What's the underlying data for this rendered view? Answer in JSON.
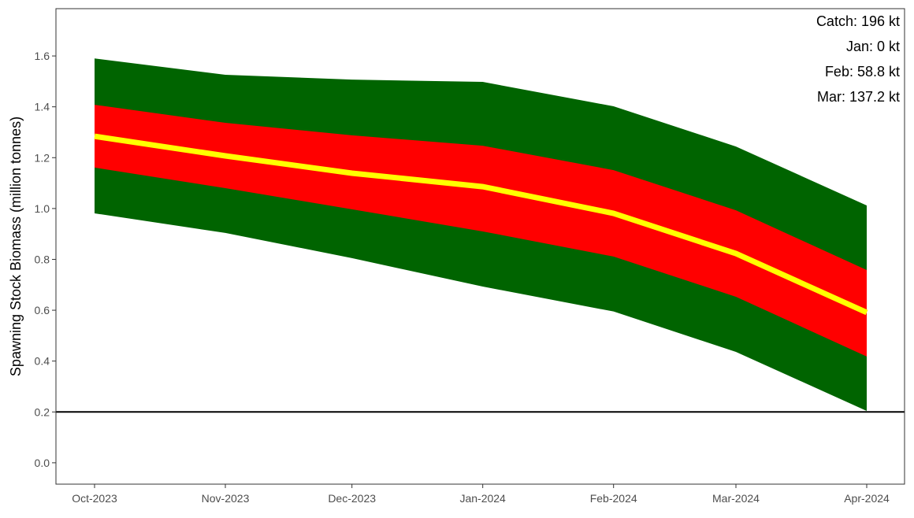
{
  "chart_data": {
    "type": "area",
    "title": "",
    "xlabel": "",
    "ylabel": "Spawning Stock Biomass (million tonnes)",
    "x": [
      "2023-10-01",
      "2023-11-01",
      "2023-12-01",
      "2024-01-01",
      "2024-02-01",
      "2024-03-01",
      "2024-04-01"
    ],
    "x_tick_labels": [
      "Oct-2023",
      "Nov-2023",
      "Dec-2023",
      "Jan-2024",
      "Feb-2024",
      "Mar-2024",
      "Apr-2024"
    ],
    "y_ticks": [
      0.0,
      0.2,
      0.4,
      0.6,
      0.8,
      1.0,
      1.2,
      1.4,
      1.6
    ],
    "y_tick_labels": [
      "0.0",
      "0.2",
      "0.4",
      "0.6",
      "0.8",
      "1.0",
      "1.2",
      "1.4",
      "1.6"
    ],
    "ylim": [
      -0.084,
      1.786
    ],
    "grid": false,
    "outer_band": {
      "lower": [
        0.981,
        0.904,
        0.805,
        0.693,
        0.595,
        0.436,
        0.204
      ],
      "upper": [
        1.59,
        1.526,
        1.507,
        1.498,
        1.402,
        1.244,
        1.012
      ],
      "color": "#006400"
    },
    "inner_band": {
      "lower": [
        1.161,
        1.08,
        0.997,
        0.91,
        0.811,
        0.653,
        0.418
      ],
      "upper": [
        1.408,
        1.337,
        1.288,
        1.247,
        1.151,
        0.993,
        0.758
      ],
      "color": "#FF0000"
    },
    "median": {
      "values": [
        1.284,
        1.207,
        1.139,
        1.086,
        0.981,
        0.823,
        0.591
      ],
      "color": "#FFFF00"
    },
    "reference_line": {
      "y": 0.2,
      "color": "#000000"
    },
    "annotations": [
      "Catch: 196 kt",
      "Jan: 0 kt",
      "Feb: 58.8 kt",
      "Mar: 137.2 kt"
    ]
  }
}
